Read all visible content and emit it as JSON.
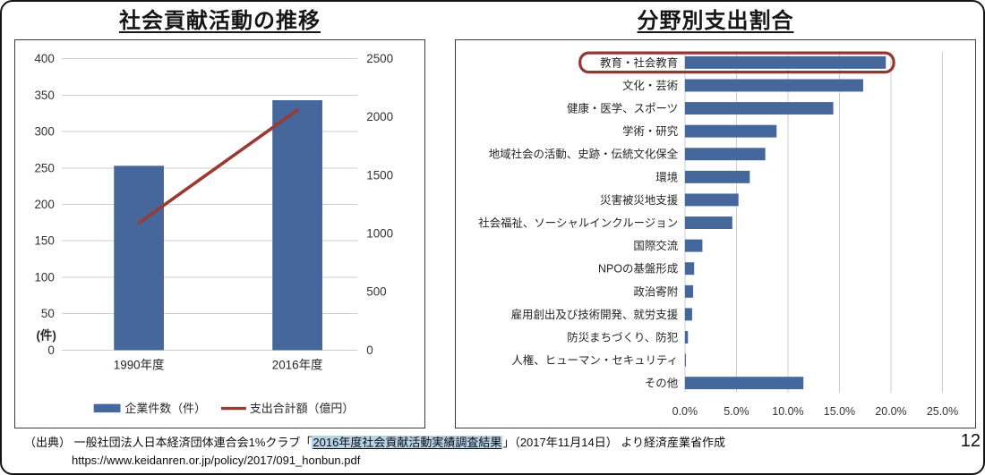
{
  "page": {
    "number": "12"
  },
  "source": {
    "prefix": "（出典） 一般社団法人日本経済団体連合会1%クラブ「",
    "highlight": "2016年度社会貢献活動実績調査結果",
    "suffix": "」（2017年11月14日） より経済産業省作成",
    "url": "https://www.keidanren.or.jp/policy/2017/091_honbun.pdf",
    "highlight_bg": "#b7d3e8"
  },
  "colors": {
    "bar": "#45679c",
    "line": "#9a3a33",
    "highlight_box": "#943634",
    "grid": "#cdcdcd",
    "tick_text": "#333333",
    "label_text": "#262626",
    "panel_border": "#3d3d3d"
  },
  "chart_data": [
    {
      "type": "bar+line combo",
      "title": "社会貢献活動の推移",
      "categories": [
        "1990年度",
        "2016年度"
      ],
      "series": [
        {
          "name": "企業件数（件）",
          "kind": "bar",
          "axis": "left",
          "values": [
            253,
            343
          ]
        },
        {
          "name": "支出合計額（億円）",
          "kind": "line",
          "axis": "right",
          "values": [
            1090,
            2060
          ]
        }
      ],
      "left_axis": {
        "min": 0,
        "max": 400,
        "step": 50,
        "ticks": [
          0,
          50,
          100,
          150,
          200,
          250,
          300,
          350,
          400
        ],
        "unit": "(件)"
      },
      "right_axis": {
        "min": 0,
        "max": 2500,
        "step": 500,
        "ticks": [
          0,
          500,
          1000,
          1500,
          2000,
          2500
        ]
      },
      "legend_position": "bottom",
      "grid": true
    },
    {
      "type": "bar",
      "orientation": "horizontal",
      "title": "分野別支出割合",
      "categories": [
        "教育・社会教育",
        "文化・芸術",
        "健康・医学、スポーツ",
        "学術・研究",
        "地域社会の活動、史跡・伝統文化保全",
        "環境",
        "災害被災地支援",
        "社会福祉、ソーシャルインクルージョン",
        "国際交流",
        "NPOの基盤形成",
        "政治寄附",
        "雇用創出及び技術開発、就労支援",
        "防災まちづくり、防犯",
        "人権、ヒューマン・セキュリティ",
        "その他"
      ],
      "values": [
        19.5,
        17.3,
        14.4,
        8.9,
        7.8,
        6.3,
        5.2,
        4.6,
        1.7,
        0.9,
        0.8,
        0.7,
        0.3,
        0.1,
        11.5
      ],
      "value_unit": "%",
      "xlim": [
        0,
        25
      ],
      "x_tick_labels": [
        "0.0%",
        "5.0%",
        "10.0%",
        "15.0%",
        "20.0%",
        "25.0%"
      ],
      "highlight_index": 0,
      "highlighted_category": "教育・社会教育",
      "grid": true
    }
  ]
}
